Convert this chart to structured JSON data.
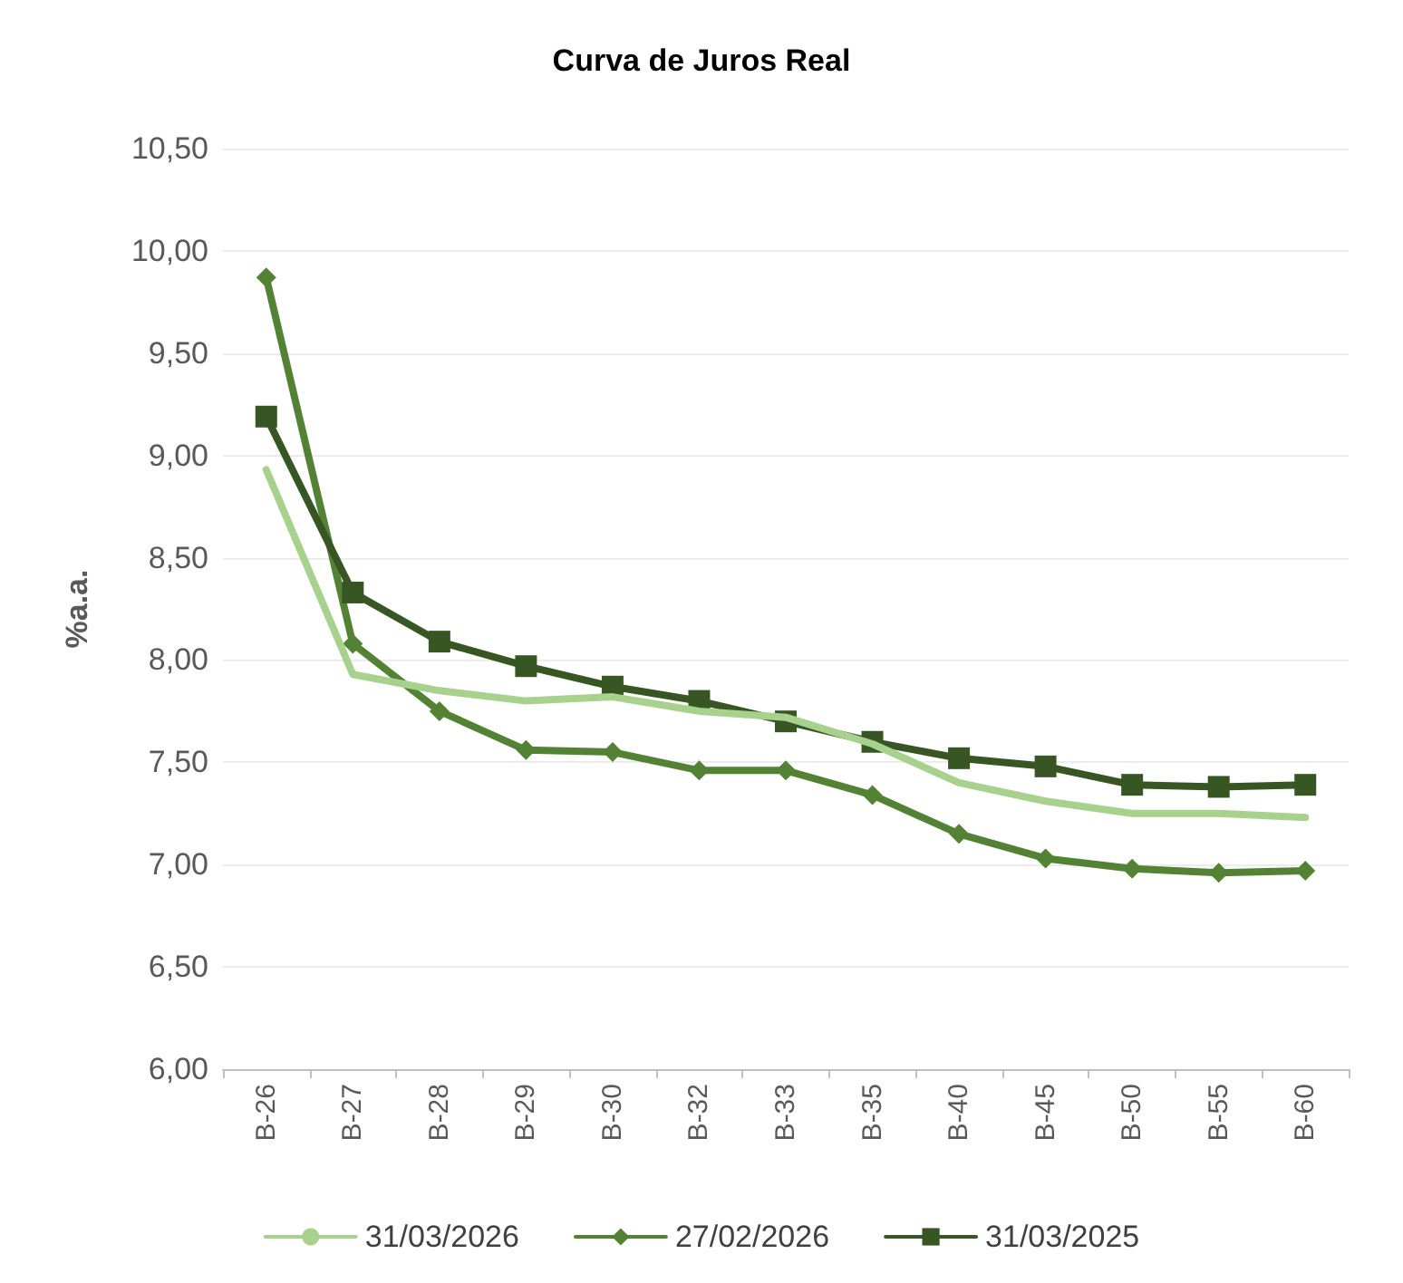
{
  "chart_data": {
    "type": "line",
    "title": "Curva de Juros Real",
    "ylabel": "%a.a.",
    "categories": [
      "B-26",
      "B-27",
      "B-28",
      "B-29",
      "B-30",
      "B-32",
      "B-33",
      "B-35",
      "B-40",
      "B-45",
      "B-50",
      "B-55",
      "B-60"
    ],
    "series": [
      {
        "name": "31/03/2026",
        "color": "#a9d18e",
        "marker": "none",
        "values": [
          8.93,
          7.93,
          7.85,
          7.8,
          7.82,
          7.75,
          7.72,
          7.59,
          7.4,
          7.31,
          7.25,
          7.25,
          7.23
        ]
      },
      {
        "name": "27/02/2026",
        "color": "#548235",
        "marker": "diamond",
        "values": [
          9.87,
          8.08,
          7.75,
          7.56,
          7.55,
          7.46,
          7.46,
          7.34,
          7.15,
          7.03,
          6.98,
          6.96,
          6.97
        ]
      },
      {
        "name": "31/03/2025",
        "color": "#375623",
        "marker": "square",
        "values": [
          9.19,
          8.33,
          8.09,
          7.97,
          7.87,
          7.8,
          7.7,
          7.6,
          7.52,
          7.48,
          7.39,
          7.38,
          7.39
        ]
      }
    ],
    "ylim": [
      6,
      10.5
    ],
    "yticks": [
      {
        "value": 6,
        "label": "6,00"
      },
      {
        "value": 6.5,
        "label": "6,50"
      },
      {
        "value": 7,
        "label": "7,00"
      },
      {
        "value": 7.5,
        "label": "7,50"
      },
      {
        "value": 8,
        "label": "8,00"
      },
      {
        "value": 8.5,
        "label": "8,50"
      },
      {
        "value": 9,
        "label": "9,00"
      },
      {
        "value": 9.5,
        "label": "9,50"
      },
      {
        "value": 10,
        "label": "10,00"
      },
      {
        "value": 10.5,
        "label": "10,50"
      }
    ],
    "grid": "y",
    "legend": "bottom",
    "line_style": "solid"
  }
}
